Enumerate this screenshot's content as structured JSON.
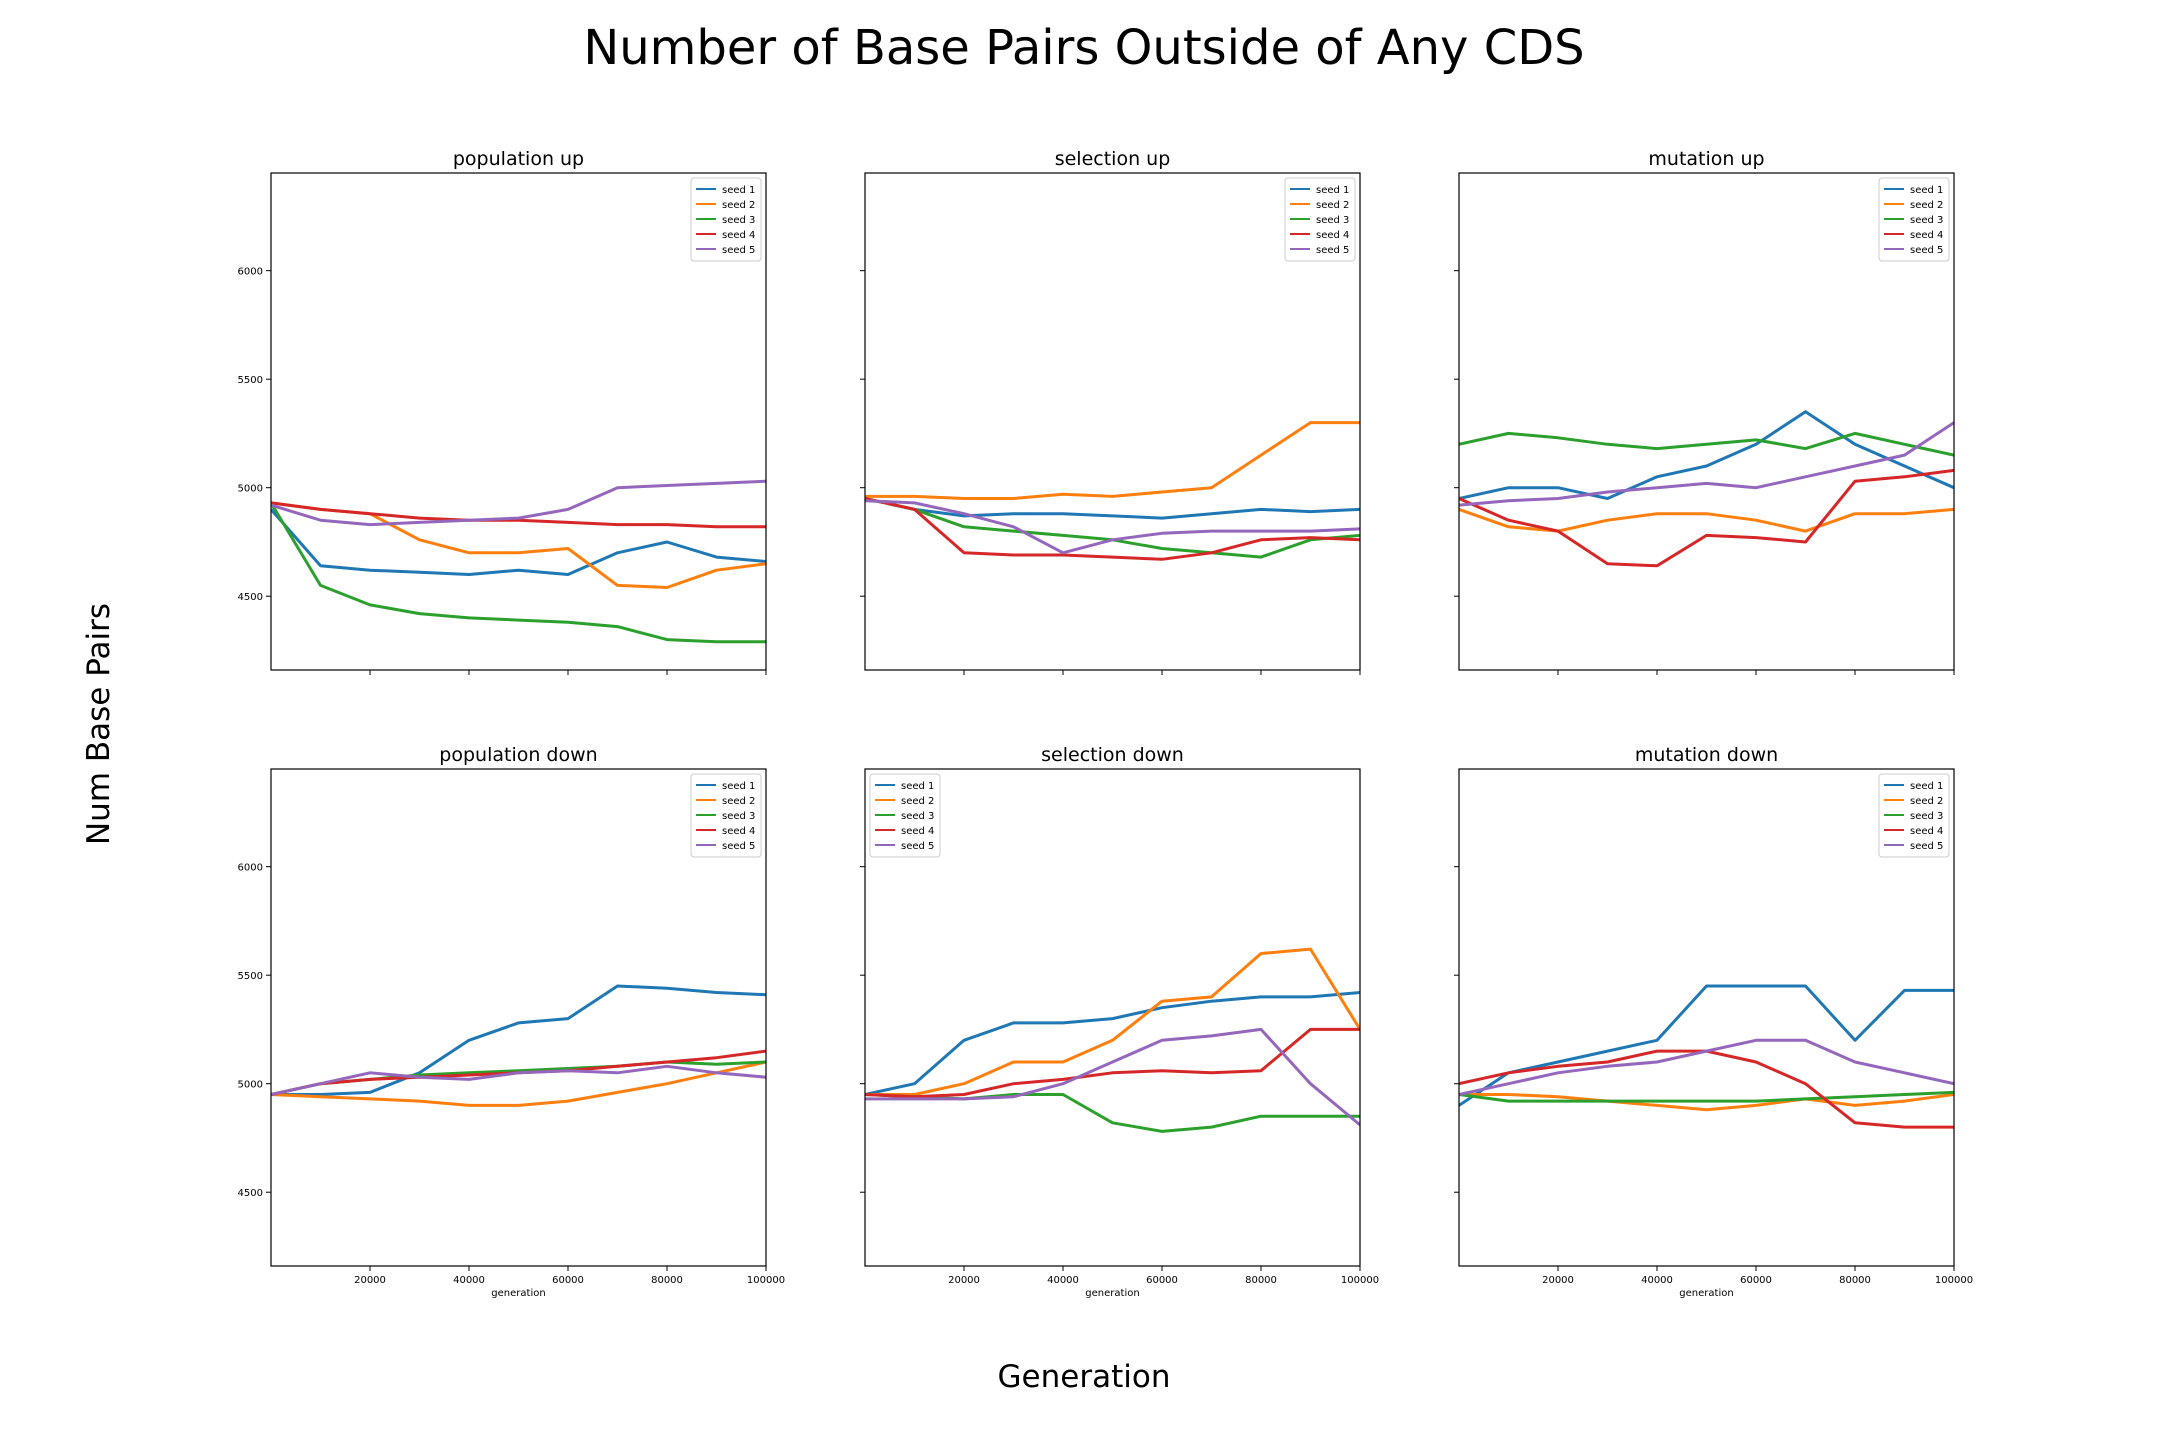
{
  "figure": {
    "title": "Number of Base Pairs Outside of Any CDS",
    "xlabel": "Generation",
    "ylabel": "Num Base Pairs"
  },
  "colors": {
    "seed 1": "#1f77b4",
    "seed 2": "#ff7f0e",
    "seed 3": "#2ca02c",
    "seed 4": "#d62728",
    "seed 5": "#9467bd"
  },
  "chart_data": [
    {
      "type": "line",
      "title": "population up",
      "xlabel": "",
      "ylabel": "",
      "xlim": [
        0,
        100000
      ],
      "ylim": [
        4160,
        6450
      ],
      "xticks": [
        20000,
        40000,
        60000,
        80000,
        100000
      ],
      "xticklabels": [],
      "yticks": [
        4500,
        5000,
        5500,
        6000
      ],
      "yticklabels": [
        "4500",
        "5000",
        "5500",
        "6000"
      ],
      "legend": "top-right",
      "series": [
        {
          "name": "seed 1",
          "x": [
            0,
            10000,
            20000,
            30000,
            40000,
            50000,
            60000,
            70000,
            80000,
            90000,
            100000
          ],
          "values": [
            4900,
            4640,
            4620,
            4610,
            4600,
            4620,
            4600,
            4700,
            4750,
            4680,
            4660
          ]
        },
        {
          "name": "seed 2",
          "x": [
            0,
            10000,
            20000,
            30000,
            40000,
            50000,
            60000,
            70000,
            80000,
            90000,
            100000
          ],
          "values": [
            4930,
            4900,
            4880,
            4760,
            4700,
            4700,
            4720,
            4550,
            4540,
            4620,
            4650
          ]
        },
        {
          "name": "seed 3",
          "x": [
            0,
            10000,
            20000,
            30000,
            40000,
            50000,
            60000,
            70000,
            80000,
            90000,
            100000
          ],
          "values": [
            4930,
            4550,
            4460,
            4420,
            4400,
            4390,
            4380,
            4360,
            4300,
            4290,
            4290
          ]
        },
        {
          "name": "seed 4",
          "x": [
            0,
            10000,
            20000,
            30000,
            40000,
            50000,
            60000,
            70000,
            80000,
            90000,
            100000
          ],
          "values": [
            4930,
            4900,
            4880,
            4860,
            4850,
            4850,
            4840,
            4830,
            4830,
            4820,
            4820
          ]
        },
        {
          "name": "seed 5",
          "x": [
            0,
            10000,
            20000,
            30000,
            40000,
            50000,
            60000,
            70000,
            80000,
            90000,
            100000
          ],
          "values": [
            4920,
            4850,
            4830,
            4840,
            4850,
            4860,
            4900,
            5000,
            5010,
            5020,
            5030
          ]
        }
      ]
    },
    {
      "type": "line",
      "title": "selection up",
      "xlabel": "",
      "ylabel": "",
      "xlim": [
        0,
        100000
      ],
      "ylim": [
        4160,
        6450
      ],
      "xticks": [
        20000,
        40000,
        60000,
        80000,
        100000
      ],
      "xticklabels": [],
      "yticks": [
        4500,
        5000,
        5500,
        6000
      ],
      "yticklabels": [],
      "legend": "top-right",
      "series": [
        {
          "name": "seed 1",
          "x": [
            0,
            10000,
            20000,
            30000,
            40000,
            50000,
            60000,
            70000,
            80000,
            90000,
            100000
          ],
          "values": [
            4950,
            4900,
            4870,
            4880,
            4880,
            4870,
            4860,
            4880,
            4900,
            4890,
            4900
          ]
        },
        {
          "name": "seed 2",
          "x": [
            0,
            10000,
            20000,
            30000,
            40000,
            50000,
            60000,
            70000,
            80000,
            90000,
            100000
          ],
          "values": [
            4960,
            4960,
            4950,
            4950,
            4970,
            4960,
            4980,
            5000,
            5150,
            5300,
            5300
          ]
        },
        {
          "name": "seed 3",
          "x": [
            0,
            10000,
            20000,
            30000,
            40000,
            50000,
            60000,
            70000,
            80000,
            90000,
            100000
          ],
          "values": [
            4950,
            4900,
            4820,
            4800,
            4780,
            4760,
            4720,
            4700,
            4680,
            4760,
            4780
          ]
        },
        {
          "name": "seed 4",
          "x": [
            0,
            10000,
            20000,
            30000,
            40000,
            50000,
            60000,
            70000,
            80000,
            90000,
            100000
          ],
          "values": [
            4950,
            4900,
            4700,
            4690,
            4690,
            4680,
            4670,
            4700,
            4760,
            4770,
            4760
          ]
        },
        {
          "name": "seed 5",
          "x": [
            0,
            10000,
            20000,
            30000,
            40000,
            50000,
            60000,
            70000,
            80000,
            90000,
            100000
          ],
          "values": [
            4940,
            4930,
            4880,
            4820,
            4700,
            4760,
            4790,
            4800,
            4800,
            4800,
            4810
          ]
        }
      ]
    },
    {
      "type": "line",
      "title": "mutation up",
      "xlabel": "",
      "ylabel": "",
      "xlim": [
        0,
        100000
      ],
      "ylim": [
        4160,
        6450
      ],
      "xticks": [
        20000,
        40000,
        60000,
        80000,
        100000
      ],
      "xticklabels": [],
      "yticks": [
        4500,
        5000,
        5500,
        6000
      ],
      "yticklabels": [],
      "legend": "top-right",
      "series": [
        {
          "name": "seed 1",
          "x": [
            0,
            10000,
            20000,
            30000,
            40000,
            50000,
            60000,
            70000,
            80000,
            90000,
            100000
          ],
          "values": [
            4950,
            5000,
            5000,
            4950,
            5050,
            5100,
            5200,
            5350,
            5200,
            5100,
            5000
          ]
        },
        {
          "name": "seed 2",
          "x": [
            0,
            10000,
            20000,
            30000,
            40000,
            50000,
            60000,
            70000,
            80000,
            90000,
            100000
          ],
          "values": [
            4900,
            4820,
            4800,
            4850,
            4880,
            4880,
            4850,
            4800,
            4880,
            4880,
            4900
          ]
        },
        {
          "name": "seed 3",
          "x": [
            0,
            10000,
            20000,
            30000,
            40000,
            50000,
            60000,
            70000,
            80000,
            90000,
            100000
          ],
          "values": [
            5200,
            5250,
            5230,
            5200,
            5180,
            5200,
            5220,
            5180,
            5250,
            5200,
            5150
          ]
        },
        {
          "name": "seed 4",
          "x": [
            0,
            10000,
            20000,
            30000,
            40000,
            50000,
            60000,
            70000,
            80000,
            90000,
            100000
          ],
          "values": [
            4950,
            4850,
            4800,
            4650,
            4640,
            4780,
            4770,
            4750,
            5030,
            5050,
            5080
          ]
        },
        {
          "name": "seed 5",
          "x": [
            0,
            10000,
            20000,
            30000,
            40000,
            50000,
            60000,
            70000,
            80000,
            90000,
            100000
          ],
          "values": [
            4920,
            4940,
            4950,
            4980,
            5000,
            5020,
            5000,
            5050,
            5100,
            5150,
            5300
          ]
        }
      ]
    },
    {
      "type": "line",
      "title": "population down",
      "xlabel": "generation",
      "ylabel": "",
      "xlim": [
        0,
        100000
      ],
      "ylim": [
        4160,
        6450
      ],
      "xticks": [
        20000,
        40000,
        60000,
        80000,
        100000
      ],
      "xticklabels": [
        "20000",
        "40000",
        "60000",
        "80000",
        "100000"
      ],
      "yticks": [
        4500,
        5000,
        5500,
        6000
      ],
      "yticklabels": [
        "4500",
        "5000",
        "5500",
        "6000"
      ],
      "legend": "top-right",
      "series": [
        {
          "name": "seed 1",
          "x": [
            0,
            10000,
            20000,
            30000,
            40000,
            50000,
            60000,
            70000,
            80000,
            90000,
            100000
          ],
          "values": [
            4950,
            4950,
            4960,
            5050,
            5200,
            5280,
            5300,
            5450,
            5440,
            5420,
            5410
          ]
        },
        {
          "name": "seed 2",
          "x": [
            0,
            10000,
            20000,
            30000,
            40000,
            50000,
            60000,
            70000,
            80000,
            90000,
            100000
          ],
          "values": [
            4950,
            4940,
            4930,
            4920,
            4900,
            4900,
            4920,
            4960,
            5000,
            5050,
            5100
          ]
        },
        {
          "name": "seed 3",
          "x": [
            0,
            10000,
            20000,
            30000,
            40000,
            50000,
            60000,
            70000,
            80000,
            90000,
            100000
          ],
          "values": [
            4950,
            5000,
            5020,
            5040,
            5050,
            5060,
            5070,
            5080,
            5100,
            5090,
            5100
          ]
        },
        {
          "name": "seed 4",
          "x": [
            0,
            10000,
            20000,
            30000,
            40000,
            50000,
            60000,
            70000,
            80000,
            90000,
            100000
          ],
          "values": [
            4950,
            5000,
            5020,
            5030,
            5040,
            5050,
            5060,
            5080,
            5100,
            5120,
            5150
          ]
        },
        {
          "name": "seed 5",
          "x": [
            0,
            10000,
            20000,
            30000,
            40000,
            50000,
            60000,
            70000,
            80000,
            90000,
            100000
          ],
          "values": [
            4950,
            5000,
            5050,
            5030,
            5020,
            5050,
            5060,
            5050,
            5080,
            5050,
            5030
          ]
        }
      ]
    },
    {
      "type": "line",
      "title": "selection down",
      "xlabel": "generation",
      "ylabel": "",
      "xlim": [
        0,
        100000
      ],
      "ylim": [
        4160,
        6450
      ],
      "xticks": [
        20000,
        40000,
        60000,
        80000,
        100000
      ],
      "xticklabels": [
        "20000",
        "40000",
        "60000",
        "80000",
        "100000"
      ],
      "yticks": [
        4500,
        5000,
        5500,
        6000
      ],
      "yticklabels": [],
      "legend": "top-left",
      "series": [
        {
          "name": "seed 1",
          "x": [
            0,
            10000,
            20000,
            30000,
            40000,
            50000,
            60000,
            70000,
            80000,
            90000,
            100000
          ],
          "values": [
            4950,
            5000,
            5200,
            5280,
            5280,
            5300,
            5350,
            5380,
            5400,
            5400,
            5420
          ]
        },
        {
          "name": "seed 2",
          "x": [
            0,
            10000,
            20000,
            30000,
            40000,
            50000,
            60000,
            70000,
            80000,
            90000,
            100000
          ],
          "values": [
            4950,
            4950,
            5000,
            5100,
            5100,
            5200,
            5380,
            5400,
            5600,
            5620,
            5250
          ]
        },
        {
          "name": "seed 3",
          "x": [
            0,
            10000,
            20000,
            30000,
            40000,
            50000,
            60000,
            70000,
            80000,
            90000,
            100000
          ],
          "values": [
            4950,
            4940,
            4930,
            4950,
            4950,
            4820,
            4780,
            4800,
            4850,
            4850,
            4850
          ]
        },
        {
          "name": "seed 4",
          "x": [
            0,
            10000,
            20000,
            30000,
            40000,
            50000,
            60000,
            70000,
            80000,
            90000,
            100000
          ],
          "values": [
            4950,
            4940,
            4950,
            5000,
            5020,
            5050,
            5060,
            5050,
            5060,
            5250,
            5250
          ]
        },
        {
          "name": "seed 5",
          "x": [
            0,
            10000,
            20000,
            30000,
            40000,
            50000,
            60000,
            70000,
            80000,
            90000,
            100000
          ],
          "values": [
            4930,
            4930,
            4930,
            4940,
            5000,
            5100,
            5200,
            5220,
            5250,
            5000,
            4810
          ]
        }
      ]
    },
    {
      "type": "line",
      "title": "mutation down",
      "xlabel": "generation",
      "ylabel": "",
      "xlim": [
        0,
        100000
      ],
      "ylim": [
        4160,
        6450
      ],
      "xticks": [
        20000,
        40000,
        60000,
        80000,
        100000
      ],
      "xticklabels": [
        "20000",
        "40000",
        "60000",
        "80000",
        "100000"
      ],
      "yticks": [
        4500,
        5000,
        5500,
        6000
      ],
      "yticklabels": [],
      "legend": "top-right",
      "series": [
        {
          "name": "seed 1",
          "x": [
            0,
            10000,
            20000,
            30000,
            40000,
            50000,
            60000,
            70000,
            80000,
            90000,
            100000
          ],
          "values": [
            4900,
            5050,
            5100,
            5150,
            5200,
            5450,
            5450,
            5450,
            5200,
            5430,
            5430
          ]
        },
        {
          "name": "seed 2",
          "x": [
            0,
            10000,
            20000,
            30000,
            40000,
            50000,
            60000,
            70000,
            80000,
            90000,
            100000
          ],
          "values": [
            4950,
            4950,
            4940,
            4920,
            4900,
            4880,
            4900,
            4930,
            4900,
            4920,
            4950
          ]
        },
        {
          "name": "seed 3",
          "x": [
            0,
            10000,
            20000,
            30000,
            40000,
            50000,
            60000,
            70000,
            80000,
            90000,
            100000
          ],
          "values": [
            4950,
            4920,
            4920,
            4920,
            4920,
            4920,
            4920,
            4930,
            4940,
            4950,
            4960
          ]
        },
        {
          "name": "seed 4",
          "x": [
            0,
            10000,
            20000,
            30000,
            40000,
            50000,
            60000,
            70000,
            80000,
            90000,
            100000
          ],
          "values": [
            5000,
            5050,
            5080,
            5100,
            5150,
            5150,
            5100,
            5000,
            4820,
            4800,
            4800
          ]
        },
        {
          "name": "seed 5",
          "x": [
            0,
            10000,
            20000,
            30000,
            40000,
            50000,
            60000,
            70000,
            80000,
            90000,
            100000
          ],
          "values": [
            4950,
            5000,
            5050,
            5080,
            5100,
            5150,
            5200,
            5200,
            5100,
            5050,
            5000
          ]
        }
      ]
    }
  ]
}
